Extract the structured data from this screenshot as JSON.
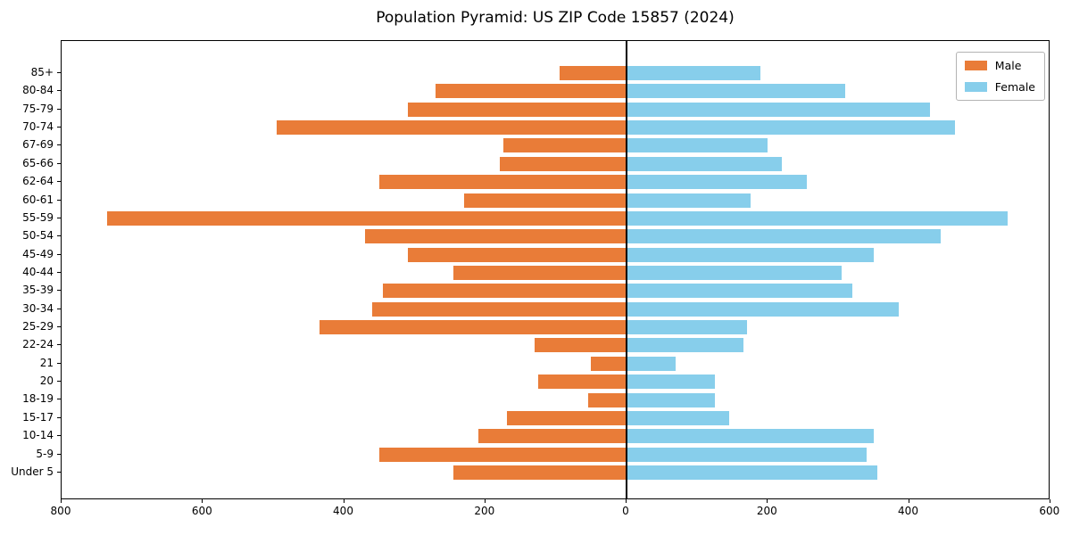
{
  "chart_data": {
    "type": "bar",
    "subtype": "population-pyramid-horizontal",
    "title": "Population Pyramid: US ZIP Code 15857 (2024)",
    "categories_top_to_bottom": [
      "85+",
      "80-84",
      "75-79",
      "70-74",
      "67-69",
      "65-66",
      "62-64",
      "60-61",
      "55-59",
      "50-54",
      "45-49",
      "40-44",
      "35-39",
      "30-34",
      "25-29",
      "22-24",
      "21",
      "20",
      "18-19",
      "15-17",
      "10-14",
      "5-9",
      "Under 5"
    ],
    "series": [
      {
        "name": "Male",
        "side": "left",
        "color": "#e97c38",
        "values": [
          95,
          270,
          310,
          495,
          175,
          180,
          350,
          230,
          735,
          370,
          310,
          245,
          345,
          360,
          435,
          130,
          50,
          125,
          55,
          170,
          210,
          350,
          245
        ]
      },
      {
        "name": "Female",
        "side": "right",
        "color": "#87ceeb",
        "values": [
          190,
          310,
          430,
          465,
          200,
          220,
          255,
          175,
          540,
          445,
          350,
          305,
          320,
          385,
          170,
          165,
          70,
          125,
          125,
          145,
          350,
          340,
          355
        ]
      }
    ],
    "x_axis": {
      "tick_labels": [
        "800",
        "600",
        "400",
        "200",
        "0",
        "200",
        "400",
        "600"
      ],
      "tick_values": [
        -800,
        -600,
        -400,
        -200,
        0,
        200,
        400,
        600
      ],
      "range": [
        -800,
        600
      ],
      "grid": false
    },
    "y_axis": {
      "label": "",
      "categories_note": "age groups, 85+ at top, Under 5 at bottom"
    },
    "legend": {
      "position": "upper-right",
      "entries": [
        "Male",
        "Female"
      ]
    }
  }
}
